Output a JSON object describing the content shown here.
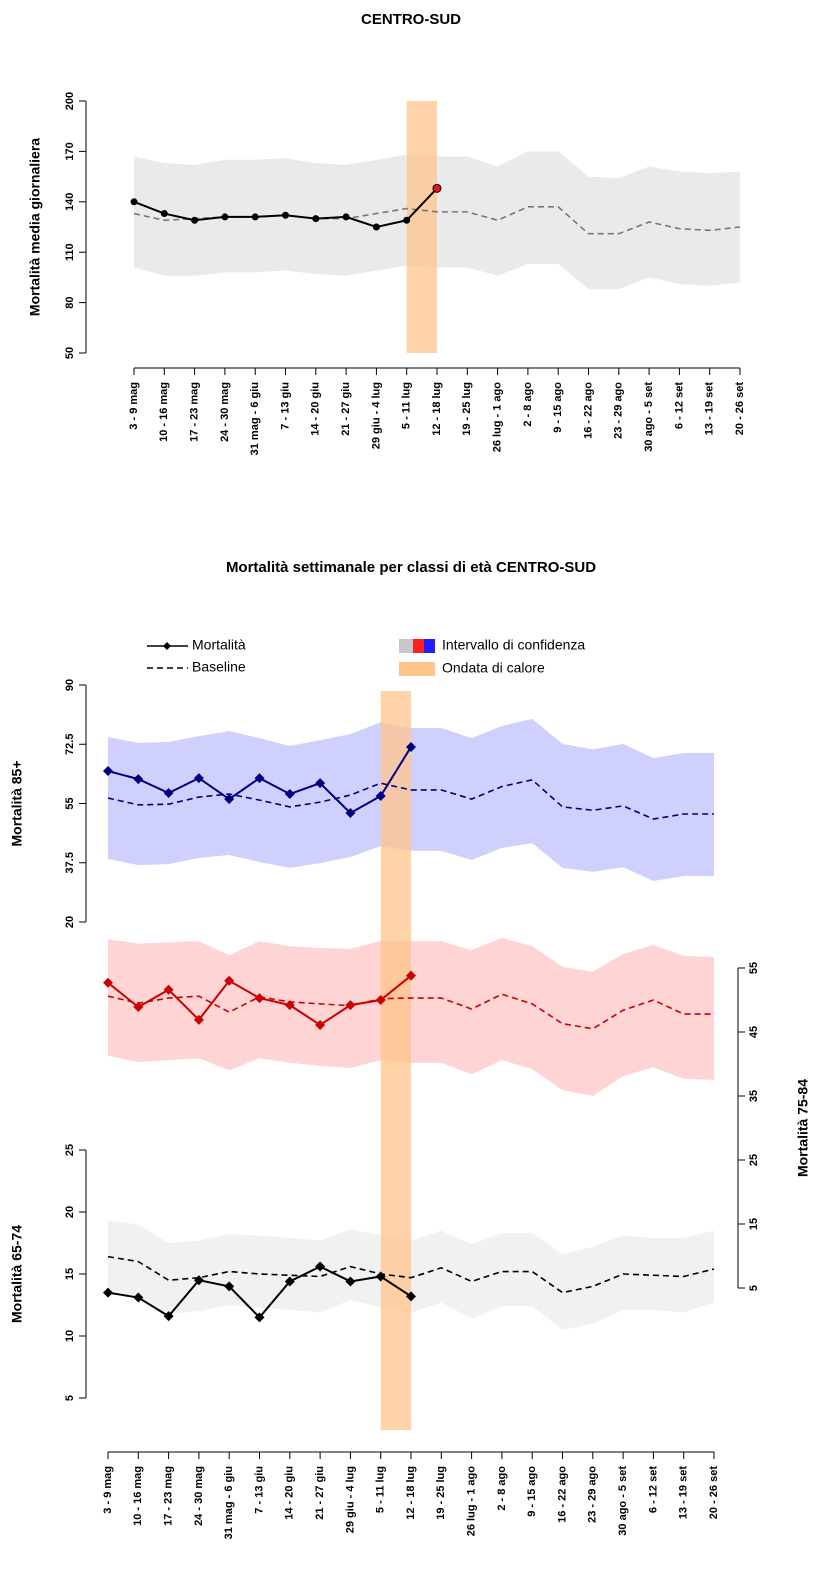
{
  "chart_data": [
    {
      "type": "line",
      "title": "CENTRO-SUD",
      "ylabel": "Mortalità media giornaliera",
      "categories": [
        "3 - 9 mag",
        "10 - 16 mag",
        "17 - 23 mag",
        "24 - 30 mag",
        "31 mag - 6 giu",
        "7 - 13 giu",
        "14 - 20 giu",
        "21 - 27 giu",
        "29 giu - 4 lug",
        "5 - 11 lug",
        "12 - 18 lug",
        "19 - 25 lug",
        "26 lug - 1 ago",
        "2 - 8 ago",
        "9 - 15 ago",
        "16 - 22 ago",
        "23 - 29 ago",
        "30 ago - 5 set",
        "6 - 12 set",
        "13 - 19 set",
        "20 - 26 set"
      ],
      "ylim": [
        50,
        200
      ],
      "yticks": [
        50,
        80,
        110,
        140,
        170,
        200
      ],
      "heatwave_categories": [
        "5 - 11 lug",
        "12 - 18 lug"
      ],
      "heatwave_color": "#ffc48a",
      "line_color": "#000000",
      "ci_color": "#e6e6e6",
      "baseline_color": "#777777",
      "highlight_color": "#e31a1c",
      "mortality": [
        140,
        133,
        129,
        131,
        131,
        132,
        130,
        131,
        125,
        129,
        148,
        null,
        null,
        null,
        null,
        null,
        null,
        null,
        null,
        null,
        null
      ],
      "baseline": [
        133,
        129,
        130,
        131,
        131,
        132,
        130,
        130,
        133,
        136,
        134,
        134,
        129,
        137,
        137,
        121,
        121,
        128,
        124,
        123,
        125
      ],
      "ci_upper": [
        167,
        163,
        162,
        165,
        165,
        166,
        163,
        162,
        165,
        168,
        167,
        167,
        161,
        170,
        170,
        155,
        154,
        161,
        158,
        157,
        158
      ],
      "ci_lower": [
        101,
        96,
        96,
        98,
        98,
        99,
        97,
        96,
        99,
        102,
        101,
        101,
        96,
        103,
        103,
        88,
        88,
        95,
        91,
        90,
        92
      ]
    },
    {
      "type": "line",
      "title": "Mortalità settimanale per classi di età CENTRO-SUD",
      "legend": [
        "Mortalità",
        "Baseline",
        "Intervallo di confidenza",
        "Ondata di calore"
      ],
      "categories": [
        "3 - 9 mag",
        "10 - 16 mag",
        "17 - 23 mag",
        "24 - 30 mag",
        "31 mag - 6 giu",
        "7 - 13 giu",
        "14 - 20 giu",
        "21 - 27 giu",
        "29 giu - 4 lug",
        "5 - 11 lug",
        "12 - 18 lug",
        "19 - 25 lug",
        "26 lug - 1 ago",
        "2 - 8 ago",
        "9 - 15 ago",
        "16 - 22 ago",
        "23 - 29 ago",
        "30 ago - 5 set",
        "6 - 12 set",
        "13 - 19 set",
        "20 - 26 set"
      ],
      "heatwave_categories": [
        "5 - 11 lug",
        "12 - 18 lug"
      ],
      "heatwave_color": "#ffc48a",
      "panels": [
        {
          "ylabel": "Mortalità 85+",
          "axis_side": "left",
          "ylim": [
            20,
            90
          ],
          "yticks": [
            20,
            37.5,
            55,
            72.5,
            90
          ],
          "line_color": "#00007f",
          "ci_color": "#c8c8ff",
          "mortality": [
            64.6,
            62.2,
            58.1,
            62.5,
            56.3,
            62.5,
            57.8,
            61,
            52.2,
            57.2,
            71.7,
            null,
            null,
            null,
            null,
            null,
            null,
            null,
            null,
            null,
            null
          ],
          "baseline": [
            56.6,
            54.6,
            54.8,
            56.9,
            57.8,
            56,
            54,
            55.4,
            57.5,
            61,
            59,
            59,
            56.3,
            60,
            62,
            54,
            53,
            54.3,
            50.4,
            51.9,
            51.9
          ],
          "ci_upper": [
            74.6,
            72.9,
            73.2,
            74.9,
            76.4,
            74.3,
            72,
            73.7,
            75.5,
            79,
            77.3,
            77.3,
            74.3,
            77.9,
            80,
            72.6,
            71,
            72.6,
            68.4,
            69.9,
            69.9
          ],
          "ci_lower": [
            38.6,
            36.8,
            37.1,
            38.9,
            39.8,
            37.7,
            36,
            37.4,
            39.2,
            42.4,
            41,
            41,
            38.3,
            41.9,
            43.3,
            36,
            34.8,
            36.2,
            32.1,
            33.6,
            33.6
          ]
        },
        {
          "ylabel": "Mortalità 75-84",
          "axis_side": "right",
          "ylim": [
            5,
            60
          ],
          "yticks": [
            5,
            15,
            25,
            35,
            45,
            55
          ],
          "line_color": "#cc0000",
          "ci_color": "#ffcccc",
          "mortality": [
            52.7,
            48.9,
            51.6,
            46.9,
            53,
            50.3,
            49.2,
            46.1,
            49.2,
            50,
            53.8,
            null,
            null,
            null,
            null,
            null,
            null,
            null,
            null,
            null,
            null
          ],
          "baseline": [
            50.6,
            49.5,
            50.3,
            50.6,
            48.1,
            50.5,
            49.7,
            49.4,
            49.1,
            50.2,
            50.3,
            50.3,
            48.6,
            50.9,
            49.4,
            46.3,
            45.5,
            48.4,
            50,
            47.8,
            47.8
          ],
          "ci_upper": [
            59.5,
            58.8,
            59,
            59.2,
            57,
            59.2,
            58.4,
            58.1,
            58,
            59.2,
            59.2,
            59.2,
            57.8,
            59.7,
            58.4,
            55.2,
            54.4,
            57.2,
            58.6,
            56.9,
            56.7
          ],
          "ci_lower": [
            41.3,
            40.3,
            40.6,
            40.9,
            39,
            40.9,
            40.2,
            39.7,
            39.4,
            40.6,
            40.2,
            40.2,
            38.4,
            40.6,
            39.2,
            35.9,
            35,
            38.1,
            39.5,
            37.7,
            37.5
          ]
        },
        {
          "ylabel": "Mortalità 65-74",
          "axis_side": "left",
          "ylim": [
            5,
            25
          ],
          "yticks": [
            5,
            10,
            15,
            20,
            25
          ],
          "line_color": "#000000",
          "ci_color": "#eeeeee",
          "mortality": [
            13.5,
            13.1,
            11.6,
            14.5,
            14,
            11.5,
            14.4,
            15.6,
            14.4,
            14.8,
            13.2,
            null,
            null,
            null,
            null,
            null,
            null,
            null,
            null,
            null,
            null
          ],
          "baseline": [
            16.4,
            16,
            14.5,
            14.7,
            15.2,
            15,
            14.9,
            14.8,
            15.6,
            15,
            14.7,
            15.5,
            14.4,
            15.2,
            15.2,
            13.5,
            14,
            15,
            14.9,
            14.8,
            15.4
          ],
          "ci_upper": [
            19.3,
            19,
            17.5,
            17.7,
            18.2,
            18.1,
            17.9,
            17.7,
            18.6,
            18.1,
            17.7,
            18.5,
            17.4,
            18.3,
            18.3,
            16.6,
            17.2,
            18.1,
            17.9,
            17.9,
            18.5
          ],
          "ci_lower": [
            13.7,
            13.2,
            11.8,
            12,
            12.5,
            12.3,
            12.1,
            11.9,
            12.9,
            12.3,
            11.9,
            12.7,
            11.4,
            12.4,
            12.4,
            10.5,
            11,
            12.1,
            12.1,
            11.9,
            12.7
          ]
        }
      ]
    }
  ]
}
